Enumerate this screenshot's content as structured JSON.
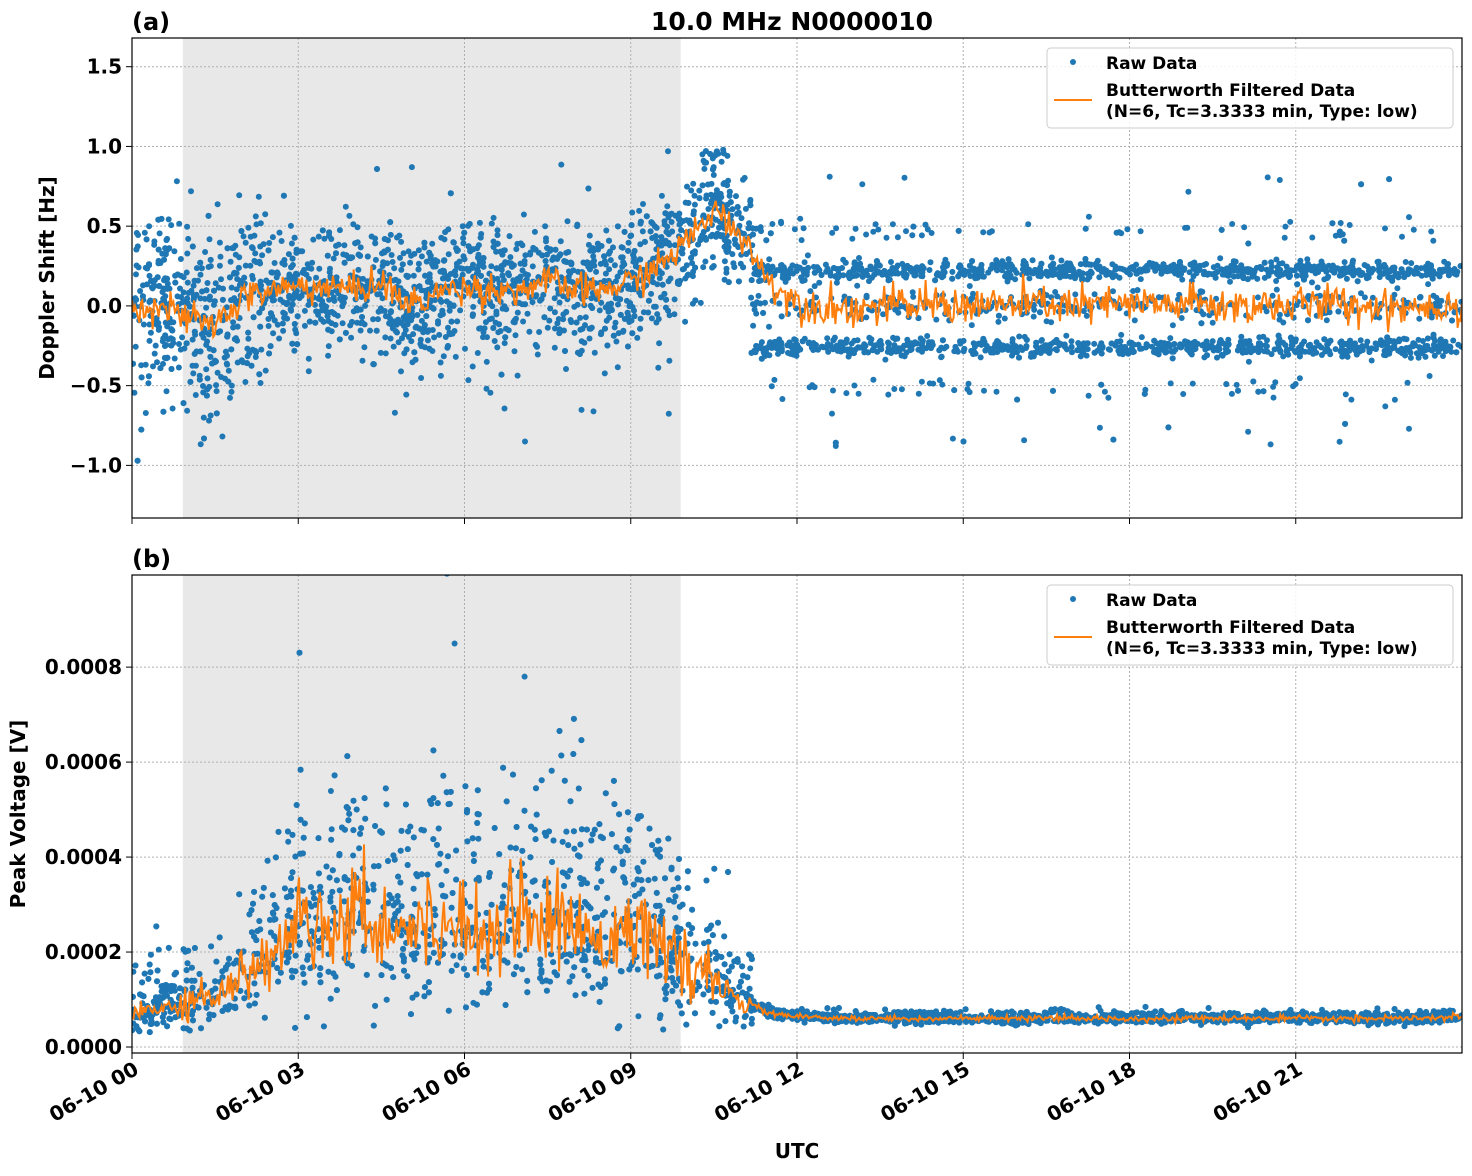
{
  "title": "10.0 MHz N0000010",
  "colors": {
    "raw": "#1f77b4",
    "filtered": "#ff7f0e",
    "shade": "#e8e8e8"
  },
  "chart_data": [
    {
      "type": "scatter",
      "panel_label": "(a)",
      "xlabel": "",
      "ylabel": "Doppler Shift [Hz]",
      "xlim": [
        "06-10 00:00",
        "06-11 00:00"
      ],
      "ylim": [
        -1.33,
        1.68
      ],
      "yticks": [
        1.5,
        1.0,
        0.5,
        0.0,
        -0.5,
        -1.0
      ],
      "ytick_label_list": [
        "1.5",
        "1.0",
        "0.5",
        "0.0",
        "−0.5",
        "−1.0"
      ],
      "grid": true,
      "legend_position": "top-right",
      "shaded_interval": [
        "06-10 00:55",
        "06-10 09:54"
      ],
      "series": [
        {
          "name": "Raw Data",
          "kind": "points"
        },
        {
          "name": "Butterworth Filtered Data",
          "name_line2": "(N=6, Tc=3.3333 min, Type: low)",
          "kind": "line",
          "x_hours_utc": [
            0,
            0.5,
            1,
            1.5,
            2,
            2.5,
            3,
            3.5,
            4,
            4.5,
            5,
            5.5,
            6,
            6.5,
            7,
            7.5,
            8,
            8.5,
            9,
            9.5,
            10,
            10.5,
            11,
            11.5,
            12,
            12.5,
            13,
            13.5,
            14,
            14.5,
            15,
            15.5,
            16,
            16.5,
            17,
            17.5,
            18,
            18.5,
            19,
            19.5,
            20,
            20.5,
            21,
            21.5,
            22,
            22.5,
            23,
            23.5,
            24
          ],
          "values": [
            0.0,
            0.0,
            -0.08,
            -0.12,
            0.05,
            0.1,
            0.12,
            0.12,
            0.1,
            0.15,
            0.0,
            0.08,
            0.12,
            0.1,
            0.1,
            0.15,
            0.1,
            0.1,
            0.15,
            0.25,
            0.4,
            0.6,
            0.45,
            0.15,
            0.02,
            0.0,
            -0.02,
            0.0,
            0.0,
            0.02,
            0.0,
            0.01,
            0.0,
            0.02,
            0.0,
            0.0,
            0.01,
            0.0,
            0.02,
            0.0,
            0.0,
            0.01,
            0.0,
            0.02,
            0.0,
            0.0,
            0.0,
            0.0,
            0.0
          ]
        }
      ]
    },
    {
      "type": "scatter",
      "panel_label": "(b)",
      "xlabel": "UTC",
      "ylabel": "Peak Voltage [V]",
      "xlim": [
        "06-10 00:00",
        "06-11 00:00"
      ],
      "ylim": [
        -1.26e-05,
        0.000994
      ],
      "yticks": [
        0.0,
        0.0002,
        0.0004,
        0.0006,
        0.0008
      ],
      "ytick_label_list": [
        "0.0000",
        "0.0002",
        "0.0004",
        "0.0006",
        "0.0008"
      ],
      "xtick_label_list": [
        "06-10 00",
        "06-10 03",
        "06-10 06",
        "06-10 09",
        "06-10 12",
        "06-10 15",
        "06-10 18",
        "06-10 21"
      ],
      "xtick_hours": [
        0,
        3,
        6,
        9,
        12,
        15,
        18,
        21
      ],
      "grid": true,
      "legend_position": "top-right",
      "shaded_interval": [
        "06-10 00:55",
        "06-10 09:54"
      ],
      "series": [
        {
          "name": "Raw Data",
          "kind": "points"
        },
        {
          "name": "Butterworth Filtered Data",
          "name_line2": "(N=6, Tc=3.3333 min, Type: low)",
          "kind": "line",
          "x_hours_utc": [
            0,
            0.5,
            1,
            1.5,
            2,
            2.5,
            3,
            3.5,
            4,
            4.5,
            5,
            5.5,
            6,
            6.5,
            7,
            7.5,
            8,
            8.5,
            9,
            9.5,
            10,
            10.5,
            11,
            11.5,
            12,
            12.5,
            13,
            13.5,
            14,
            14.5,
            15,
            15.5,
            16,
            16.5,
            17,
            17.5,
            18,
            18.5,
            19,
            19.5,
            20,
            20.5,
            21,
            21.5,
            22,
            22.5,
            23,
            23.5,
            24
          ],
          "values": [
            7e-05,
            8e-05,
            0.0001,
            0.00011,
            0.00015,
            0.00018,
            0.00028,
            0.00025,
            0.0003,
            0.00025,
            0.00026,
            0.00025,
            0.00027,
            0.00024,
            0.0003,
            0.00025,
            0.00026,
            0.00022,
            0.00028,
            0.0002,
            0.00018,
            0.00013,
            0.0001,
            7e-05,
            6.5e-05,
            6e-05,
            6e-05,
            6e-05,
            6e-05,
            6e-05,
            6e-05,
            6e-05,
            6e-05,
            6e-05,
            6e-05,
            6e-05,
            6e-05,
            6e-05,
            6e-05,
            6e-05,
            6e-05,
            6e-05,
            6e-05,
            6e-05,
            6e-05,
            6e-05,
            6e-05,
            6e-05,
            6.5e-05
          ]
        }
      ]
    }
  ]
}
